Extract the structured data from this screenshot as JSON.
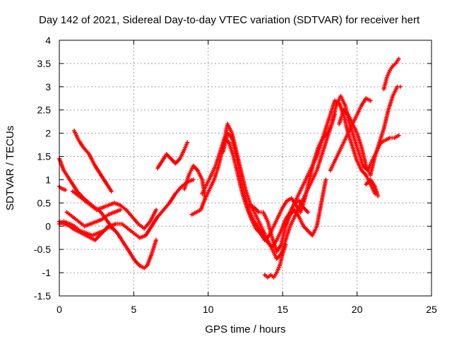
{
  "chart_data": {
    "type": "scatter",
    "title": "Day 142 of 2021, Sidereal Day-to-day VTEC variation (SDTVAR) for receiver hert",
    "xlabel": "GPS time / hours",
    "ylabel": "SDTVAR / TECUs",
    "xlim": [
      0,
      25
    ],
    "ylim": [
      -1.5,
      4
    ],
    "xticks": [
      0,
      5,
      10,
      15,
      20,
      25
    ],
    "yticks": [
      -1.5,
      -1,
      -0.5,
      0,
      0.5,
      1,
      1.5,
      2,
      2.5,
      3,
      3.5,
      4
    ],
    "xtick_labels": [
      "0",
      "5",
      "10",
      "15",
      "20",
      "25"
    ],
    "ytick_labels": [
      "-1.5",
      "-1",
      "-0.5",
      "0",
      "0.5",
      "1",
      "1.5",
      "2",
      "2.5",
      "3",
      "3.5",
      "4"
    ],
    "grid": true,
    "marker": "+",
    "color": "#ff0000",
    "series": [
      {
        "x": [
          0.0,
          0.3,
          0.8,
          1.2,
          1.7,
          2.1,
          2.4,
          2.8,
          3.2,
          3.6
        ],
        "y": [
          1.45,
          1.2,
          0.95,
          0.75,
          0.58,
          0.47,
          0.4,
          0.3,
          0.12,
          -0.05
        ]
      },
      {
        "x": [
          0.0,
          0.1,
          0.4
        ],
        "y": [
          0.85,
          0.82,
          0.78
        ]
      },
      {
        "x": [
          0.0,
          0.3,
          0.6,
          0.9,
          1.2,
          1.5,
          1.8,
          2.1,
          2.4,
          2.7,
          3.0,
          3.3,
          3.6,
          3.9,
          4.2,
          4.5,
          4.8,
          5.1,
          5.4,
          5.7,
          5.9,
          6.2,
          6.5
        ],
        "y": [
          0.1,
          0.05,
          0.02,
          -0.05,
          -0.1,
          -0.15,
          -0.2,
          -0.25,
          -0.3,
          -0.2,
          -0.1,
          0.0,
          -0.05,
          -0.15,
          -0.3,
          -0.45,
          -0.6,
          -0.75,
          -0.85,
          -0.9,
          -0.85,
          -0.6,
          -0.3
        ]
      },
      {
        "x": [
          0.0,
          0.3,
          0.7,
          1.0,
          1.4,
          1.8,
          2.2,
          2.6,
          3.0,
          3.4,
          3.8,
          4.2,
          4.6,
          5.0,
          5.4,
          5.8,
          6.2,
          6.6,
          7.0,
          7.4,
          7.8,
          8.2,
          8.6,
          9.0
        ],
        "y": [
          0.05,
          0.1,
          0.05,
          0.0,
          -0.1,
          -0.15,
          -0.2,
          -0.15,
          -0.1,
          0.0,
          0.05,
          0.05,
          -0.05,
          -0.15,
          -0.25,
          -0.2,
          0.0,
          0.2,
          0.35,
          0.5,
          0.7,
          0.85,
          0.95,
          1.0
        ]
      },
      {
        "x": [
          1.0,
          1.3,
          1.6,
          2.0,
          2.4,
          2.8,
          3.2,
          3.5
        ],
        "y": [
          2.05,
          1.85,
          1.7,
          1.55,
          1.3,
          1.1,
          0.9,
          0.75
        ]
      },
      {
        "x": [
          0.9,
          1.3,
          1.7,
          2.1,
          2.5,
          2.9,
          3.3,
          3.7,
          4.1,
          4.5,
          4.9,
          5.3,
          5.7,
          6.1,
          6.5
        ],
        "y": [
          0.75,
          0.65,
          0.55,
          0.45,
          0.35,
          0.4,
          0.45,
          0.5,
          0.45,
          0.35,
          0.2,
          0.05,
          -0.05,
          0.1,
          0.35
        ]
      },
      {
        "x": [
          0.5,
          0.9,
          1.3,
          1.7,
          2.1,
          2.5,
          2.9,
          3.3,
          3.7,
          4.1
        ],
        "y": [
          0.3,
          0.2,
          0.1,
          0.0,
          0.05,
          0.1,
          0.15,
          0.25,
          0.3,
          0.35
        ]
      },
      {
        "x": [
          6.6,
          6.9,
          7.2,
          7.5,
          7.8,
          8.1,
          8.4,
          8.6
        ],
        "y": [
          1.25,
          1.4,
          1.55,
          1.45,
          1.35,
          1.45,
          1.65,
          1.8
        ]
      },
      {
        "x": [
          8.4,
          8.7,
          9.0,
          9.3,
          9.6,
          9.8,
          9.5,
          9.2,
          8.9
        ],
        "y": [
          0.8,
          1.1,
          1.3,
          1.2,
          1.0,
          0.6,
          0.35,
          0.3,
          0.25
        ]
      },
      {
        "x": [
          9.6,
          9.9,
          10.2,
          10.5,
          10.8,
          11.1,
          11.4,
          11.7,
          12.0,
          12.3,
          12.6,
          12.9,
          13.2,
          13.5,
          13.8,
          14.1,
          14.4,
          14.7,
          15.0,
          15.3,
          15.6,
          15.9,
          16.2,
          16.5,
          16.8,
          17.1,
          17.4,
          17.7,
          18.0,
          18.3,
          18.6,
          18.9,
          19.2,
          19.5,
          19.8,
          20.1,
          20.4,
          20.7,
          21.0,
          21.3,
          21.6,
          21.9,
          22.2,
          22.5,
          22.8
        ],
        "y": [
          0.7,
          0.9,
          1.1,
          1.3,
          1.6,
          1.9,
          1.8,
          1.5,
          1.1,
          0.7,
          0.4,
          0.15,
          -0.05,
          -0.15,
          -0.3,
          -0.2,
          0.0,
          0.2,
          0.4,
          0.55,
          0.6,
          0.45,
          0.3,
          0.6,
          1.0,
          1.4,
          1.7,
          1.9,
          2.0,
          2.2,
          2.6,
          2.8,
          2.6,
          2.2,
          1.9,
          1.6,
          1.3,
          1.2,
          1.4,
          1.6,
          1.8,
          1.85,
          1.9,
          1.9,
          1.95
        ]
      },
      {
        "x": [
          9.8,
          10.1,
          10.4,
          10.7,
          11.0,
          11.3,
          11.6,
          11.9,
          12.2,
          12.5,
          12.8,
          13.1,
          13.4,
          13.7,
          14.0,
          14.3,
          14.6,
          14.9,
          15.2,
          15.5,
          15.8,
          16.1,
          16.4,
          16.7,
          17.0,
          17.3,
          17.6,
          17.9,
          18.2,
          18.5
        ],
        "y": [
          0.6,
          0.8,
          1.0,
          1.3,
          1.7,
          2.2,
          2.0,
          1.6,
          1.2,
          0.8,
          0.5,
          0.3,
          0.1,
          -0.1,
          -0.3,
          -0.5,
          -0.7,
          -0.6,
          -0.3,
          0.0,
          0.2,
          0.4,
          0.6,
          0.8,
          1.0,
          1.2,
          1.5,
          1.8,
          2.1,
          2.4
        ]
      },
      {
        "x": [
          11.0,
          11.3,
          11.6,
          11.9,
          12.2,
          12.5,
          12.8,
          13.1,
          13.4,
          13.7,
          14.0,
          14.3,
          14.6,
          14.9,
          15.2,
          15.5,
          15.8,
          16.1,
          16.4,
          16.7
        ],
        "y": [
          1.6,
          2.0,
          1.9,
          1.5,
          1.0,
          0.6,
          0.3,
          0.1,
          -0.05,
          -0.2,
          -0.35,
          -0.45,
          -0.3,
          -0.1,
          0.15,
          0.3,
          0.5,
          0.55,
          0.4,
          0.3
        ]
      },
      {
        "x": [
          12.8,
          13.1,
          13.4,
          13.7,
          14.0,
          14.3,
          14.6,
          14.9,
          15.2,
          15.5,
          15.8,
          16.1,
          16.4,
          16.7,
          17.0,
          17.3,
          17.6,
          17.9
        ],
        "y": [
          0.45,
          0.4,
          0.3,
          0.3,
          0.1,
          -0.25,
          -0.55,
          -0.4,
          0.0,
          0.25,
          0.35,
          0.2,
          0.0,
          -0.1,
          -0.2,
          0.0,
          0.5,
          1.0
        ]
      },
      {
        "x": [
          13.8,
          14.0,
          14.2,
          14.4,
          14.6,
          14.8,
          15.0,
          15.2
        ],
        "y": [
          -1.05,
          -1.1,
          -1.05,
          -1.1,
          -1.0,
          -0.85,
          -0.6,
          -0.4
        ]
      },
      {
        "x": [
          15.5,
          15.8,
          16.1,
          16.4,
          16.7,
          17.0,
          17.3,
          17.6,
          17.9,
          18.2,
          18.5,
          18.8,
          19.1,
          19.4,
          19.7,
          20.0,
          20.3,
          20.6,
          20.9,
          21.2
        ],
        "y": [
          0.3,
          0.5,
          0.7,
          0.9,
          1.1,
          1.3,
          1.5,
          1.8,
          2.1,
          2.4,
          2.7,
          2.65,
          2.4,
          2.0,
          1.7,
          1.4,
          1.2,
          1.1,
          0.9,
          0.7
        ]
      },
      {
        "x": [
          18.2,
          18.5,
          18.8,
          19.1,
          19.4,
          19.7,
          20.0,
          20.3,
          20.6,
          20.9
        ],
        "y": [
          1.2,
          1.4,
          1.6,
          1.8,
          2.0,
          2.2,
          2.4,
          2.6,
          2.75,
          2.7
        ]
      },
      {
        "x": [
          18.8,
          19.1,
          19.4,
          19.7,
          20.0,
          20.3,
          20.6,
          20.9,
          21.2,
          21.5,
          21.8,
          22.1,
          22.4,
          22.7,
          22.9
        ],
        "y": [
          2.2,
          2.5,
          2.4,
          2.2,
          2.0,
          1.7,
          1.3,
          1.1,
          1.5,
          1.8,
          2.1,
          2.5,
          2.8,
          3.0,
          3.0
        ]
      },
      {
        "x": [
          21.8,
          22.0,
          22.2,
          22.4,
          22.6,
          22.8
        ],
        "y": [
          2.95,
          3.2,
          3.35,
          3.45,
          3.5,
          3.6
        ]
      },
      {
        "x": [
          20.6,
          20.9,
          21.2,
          21.4
        ],
        "y": [
          0.9,
          1.0,
          0.85,
          0.65
        ]
      }
    ]
  }
}
